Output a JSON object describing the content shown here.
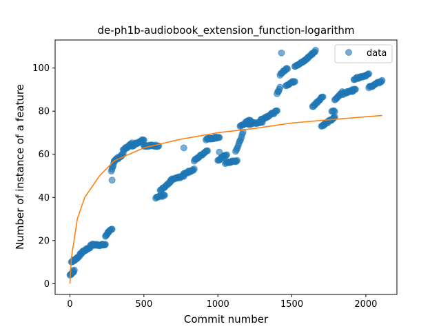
{
  "chart_data": {
    "type": "scatter",
    "title": "de-ph1b-audiobook_extension_function-logarithm",
    "xlabel": "Commit number",
    "ylabel": "Number of instance of a feature",
    "xlim": [
      -100,
      2210
    ],
    "ylim": [
      -5,
      113
    ],
    "xticks": [
      0,
      500,
      1000,
      1500,
      2000
    ],
    "yticks": [
      0,
      20,
      40,
      60,
      80,
      100
    ],
    "grid": false,
    "legend": {
      "position": "top-right",
      "entries": [
        "data"
      ]
    },
    "colors": {
      "data": "#1f77b4",
      "fit": "#ff7f0e"
    },
    "series": [
      {
        "name": "data",
        "kind": "scatter",
        "segments": [
          {
            "x0": 0,
            "x1": 30,
            "y0": 4,
            "y1": 6,
            "n": 8
          },
          {
            "x0": 10,
            "x1": 50,
            "y0": 10,
            "y1": 12,
            "n": 10
          },
          {
            "x0": 50,
            "x1": 90,
            "y0": 12,
            "y1": 15,
            "n": 10
          },
          {
            "x0": 90,
            "x1": 140,
            "y0": 15,
            "y1": 17,
            "n": 12
          },
          {
            "x0": 140,
            "x1": 240,
            "y0": 18,
            "y1": 18,
            "n": 26
          },
          {
            "x0": 240,
            "x1": 260,
            "y0": 22,
            "y1": 24,
            "n": 6
          },
          {
            "x0": 260,
            "x1": 285,
            "y0": 24,
            "y1": 25,
            "n": 6
          },
          {
            "x0": 280,
            "x1": 300,
            "y0": 52,
            "y1": 57,
            "n": 6
          },
          {
            "x0": 300,
            "x1": 360,
            "y0": 57,
            "y1": 60,
            "n": 14
          },
          {
            "x0": 360,
            "x1": 420,
            "y0": 62,
            "y1": 65,
            "n": 14
          },
          {
            "x0": 420,
            "x1": 500,
            "y0": 64,
            "y1": 67,
            "n": 20
          },
          {
            "x0": 500,
            "x1": 600,
            "y0": 64,
            "y1": 64,
            "n": 22
          },
          {
            "x0": 580,
            "x1": 640,
            "y0": 40,
            "y1": 41,
            "n": 12
          },
          {
            "x0": 610,
            "x1": 680,
            "y0": 43,
            "y1": 47,
            "n": 14
          },
          {
            "x0": 680,
            "x1": 770,
            "y0": 48,
            "y1": 50,
            "n": 18
          },
          {
            "x0": 770,
            "x1": 840,
            "y0": 51,
            "y1": 53,
            "n": 14
          },
          {
            "x0": 840,
            "x1": 930,
            "y0": 57,
            "y1": 62,
            "n": 18
          },
          {
            "x0": 920,
            "x1": 1010,
            "y0": 67,
            "y1": 68,
            "n": 18
          },
          {
            "x0": 1000,
            "x1": 1060,
            "y0": 57,
            "y1": 60,
            "n": 12
          },
          {
            "x0": 1050,
            "x1": 1130,
            "y0": 56,
            "y1": 57,
            "n": 16
          },
          {
            "x0": 1120,
            "x1": 1170,
            "y0": 61,
            "y1": 70,
            "n": 10
          },
          {
            "x0": 1150,
            "x1": 1220,
            "y0": 73,
            "y1": 76,
            "n": 14
          },
          {
            "x0": 1200,
            "x1": 1300,
            "y0": 74,
            "y1": 75,
            "n": 20
          },
          {
            "x0": 1290,
            "x1": 1400,
            "y0": 76,
            "y1": 80,
            "n": 22
          },
          {
            "x0": 1400,
            "x1": 1420,
            "y0": 88,
            "y1": 91,
            "n": 5
          },
          {
            "x0": 1420,
            "x1": 1470,
            "y0": 97,
            "y1": 100,
            "n": 10
          },
          {
            "x0": 1460,
            "x1": 1520,
            "y0": 92,
            "y1": 94,
            "n": 12
          },
          {
            "x0": 1520,
            "x1": 1580,
            "y0": 101,
            "y1": 103,
            "n": 12
          },
          {
            "x0": 1580,
            "x1": 1660,
            "y0": 103,
            "y1": 108,
            "n": 16
          },
          {
            "x0": 1640,
            "x1": 1710,
            "y0": 82,
            "y1": 87,
            "n": 14
          },
          {
            "x0": 1700,
            "x1": 1790,
            "y0": 73,
            "y1": 77,
            "n": 18
          },
          {
            "x0": 1770,
            "x1": 1790,
            "y0": 80,
            "y1": 80,
            "n": 4
          },
          {
            "x0": 1790,
            "x1": 1840,
            "y0": 85,
            "y1": 89,
            "n": 10
          },
          {
            "x0": 1840,
            "x1": 1930,
            "y0": 88,
            "y1": 90,
            "n": 18
          },
          {
            "x0": 1920,
            "x1": 2020,
            "y0": 95,
            "y1": 97,
            "n": 20
          },
          {
            "x0": 2020,
            "x1": 2110,
            "y0": 91,
            "y1": 94,
            "n": 18
          }
        ],
        "points": [
          {
            "x": 1430,
            "y": 107
          },
          {
            "x": 285,
            "y": 48
          },
          {
            "x": 770,
            "y": 63
          },
          {
            "x": 1010,
            "y": 61
          },
          {
            "x": 20,
            "y": 6
          },
          {
            "x": 1910,
            "y": 90
          }
        ]
      },
      {
        "name": "",
        "kind": "line",
        "fit": "logarithmic",
        "x_range": [
          0,
          2110
        ],
        "points": [
          {
            "x": 0,
            "y": 0
          },
          {
            "x": 10,
            "y": 12
          },
          {
            "x": 50,
            "y": 30
          },
          {
            "x": 100,
            "y": 40
          },
          {
            "x": 200,
            "y": 50
          },
          {
            "x": 300,
            "y": 57
          },
          {
            "x": 500,
            "y": 63
          },
          {
            "x": 750,
            "y": 67
          },
          {
            "x": 1000,
            "y": 70
          },
          {
            "x": 1250,
            "y": 72
          },
          {
            "x": 1500,
            "y": 74.5
          },
          {
            "x": 1750,
            "y": 76
          },
          {
            "x": 2110,
            "y": 78
          }
        ]
      }
    ]
  }
}
